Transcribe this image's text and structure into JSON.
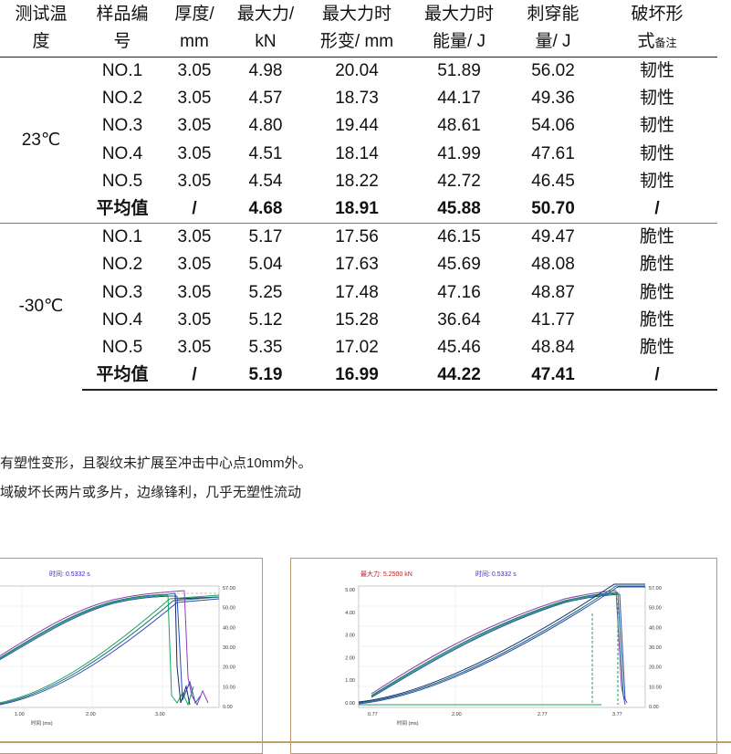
{
  "table": {
    "headers": [
      [
        "测试温",
        "度"
      ],
      [
        "样品编",
        "号"
      ],
      [
        "厚度/",
        "mm"
      ],
      [
        "最大力/",
        "kN"
      ],
      [
        "最大力时",
        "形变/ mm"
      ],
      [
        "最大力时",
        "能量/ J"
      ],
      [
        "刺穿能",
        "量/ J"
      ],
      [
        "破坏形",
        "式"
      ]
    ],
    "header_note": "备注",
    "groups": [
      {
        "temperature": "23℃",
        "rows": [
          [
            "NO.1",
            "3.05",
            "4.98",
            "20.04",
            "51.89",
            "56.02",
            "韧性"
          ],
          [
            "NO.2",
            "3.05",
            "4.57",
            "18.73",
            "44.17",
            "49.36",
            "韧性"
          ],
          [
            "NO.3",
            "3.05",
            "4.80",
            "19.44",
            "48.61",
            "54.06",
            "韧性"
          ],
          [
            "NO.4",
            "3.05",
            "4.51",
            "18.14",
            "41.99",
            "47.61",
            "韧性"
          ],
          [
            "NO.5",
            "3.05",
            "4.54",
            "18.22",
            "42.72",
            "46.45",
            "韧性"
          ]
        ],
        "average": [
          "平均值",
          "/",
          "4.68",
          "18.91",
          "45.88",
          "50.70",
          "/"
        ]
      },
      {
        "temperature": "-30℃",
        "rows": [
          [
            "NO.1",
            "3.05",
            "5.17",
            "17.56",
            "46.15",
            "49.47",
            "脆性"
          ],
          [
            "NO.2",
            "3.05",
            "5.04",
            "17.63",
            "45.69",
            "48.08",
            "脆性"
          ],
          [
            "NO.3",
            "3.05",
            "5.25",
            "17.48",
            "47.16",
            "48.87",
            "脆性"
          ],
          [
            "NO.4",
            "3.05",
            "5.12",
            "15.28",
            "36.64",
            "41.77",
            "脆性"
          ],
          [
            "NO.5",
            "3.05",
            "5.35",
            "17.02",
            "45.46",
            "48.84",
            "脆性"
          ]
        ],
        "average": [
          "平均值",
          "/",
          "5.19",
          "16.99",
          "44.22",
          "47.41",
          "/"
        ]
      }
    ]
  },
  "notes": [
    "有塑性变形，且裂纹未扩展至冲击中心点10mm外。",
    "域破坏长两片或多片，边缘锋利，几乎无塑性流动"
  ],
  "graphs": {
    "left": {
      "header": "时间: 0.5332 s",
      "x_label": "时间 (ms)",
      "x_ticks": [
        "1.00",
        "2.00",
        "3.00"
      ],
      "y2_ticks": [
        "57.00",
        "50.00",
        "40.00",
        "30.00",
        "20.00",
        "10.00",
        "0.00"
      ]
    },
    "right": {
      "header_left": "最大力: 5.2500 kN",
      "header_mid": "时间: 0.5332 s",
      "x_label": "时间 (ms)",
      "x_ticks": [
        "0.77",
        "2.00",
        "2.77",
        "3.77"
      ],
      "y_ticks": [
        "5.00",
        "4.00",
        "3.00",
        "2.00",
        "1.00",
        "0.00"
      ],
      "y2_ticks": [
        "57.00",
        "50.00",
        "40.00",
        "30.00",
        "20.00",
        "10.00",
        "0.00"
      ]
    }
  },
  "colors": {
    "frame_border": "#b89670",
    "curve_colors": [
      "#1b6a7a",
      "#2a4bb0",
      "#8a3fb0",
      "#17a35a",
      "#0d2a6a"
    ]
  }
}
